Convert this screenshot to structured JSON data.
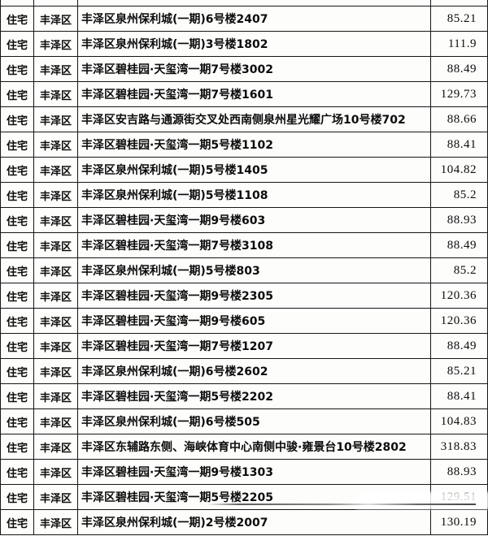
{
  "table": {
    "column_semantics": [
      "property_type",
      "district",
      "address",
      "floor_area_sqm"
    ],
    "rows": [
      {
        "type": "住宅",
        "district": "丰泽区",
        "address": "丰泽区泉州保利城(一期)6号楼2407",
        "area": "85.21"
      },
      {
        "type": "住宅",
        "district": "丰泽区",
        "address": "丰泽区泉州保利城(一期)3号楼1802",
        "area": "111.9"
      },
      {
        "type": "住宅",
        "district": "丰泽区",
        "address": "丰泽区碧桂园·天玺湾一期7号楼3002",
        "area": "88.49"
      },
      {
        "type": "住宅",
        "district": "丰泽区",
        "address": "丰泽区碧桂园·天玺湾一期7号楼1601",
        "area": "129.73"
      },
      {
        "type": "住宅",
        "district": "丰泽区",
        "address": "丰泽区安吉路与通源街交叉处西南侧泉州星光耀广场10号楼702",
        "area": "88.66"
      },
      {
        "type": "住宅",
        "district": "丰泽区",
        "address": "丰泽区碧桂园·天玺湾一期5号楼1102",
        "area": "88.41"
      },
      {
        "type": "住宅",
        "district": "丰泽区",
        "address": "丰泽区泉州保利城(一期)5号楼1405",
        "area": "104.82"
      },
      {
        "type": "住宅",
        "district": "丰泽区",
        "address": "丰泽区泉州保利城(一期)5号楼1108",
        "area": "85.2"
      },
      {
        "type": "住宅",
        "district": "丰泽区",
        "address": "丰泽区碧桂园·天玺湾一期9号楼603",
        "area": "88.93"
      },
      {
        "type": "住宅",
        "district": "丰泽区",
        "address": "丰泽区碧桂园·天玺湾一期7号楼3108",
        "area": "88.49"
      },
      {
        "type": "住宅",
        "district": "丰泽区",
        "address": "丰泽区泉州保利城(一期)5号楼803",
        "area": "85.2"
      },
      {
        "type": "住宅",
        "district": "丰泽区",
        "address": "丰泽区碧桂园·天玺湾一期9号楼2305",
        "area": "120.36"
      },
      {
        "type": "住宅",
        "district": "丰泽区",
        "address": "丰泽区碧桂园·天玺湾一期9号楼605",
        "area": "120.36"
      },
      {
        "type": "住宅",
        "district": "丰泽区",
        "address": "丰泽区碧桂园·天玺湾一期7号楼1207",
        "area": "88.49"
      },
      {
        "type": "住宅",
        "district": "丰泽区",
        "address": "丰泽区泉州保利城(一期)6号楼2602",
        "area": "85.21"
      },
      {
        "type": "住宅",
        "district": "丰泽区",
        "address": "丰泽区碧桂园·天玺湾一期5号楼2202",
        "area": "88.41"
      },
      {
        "type": "住宅",
        "district": "丰泽区",
        "address": "丰泽区泉州保利城(一期)6号楼505",
        "area": "104.83"
      },
      {
        "type": "住宅",
        "district": "丰泽区",
        "address": "丰泽区东辅路东侧、海峡体育中心南侧中骏·雍景台10号楼2802",
        "area": "318.83"
      },
      {
        "type": "住宅",
        "district": "丰泽区",
        "address": "丰泽区碧桂园·天玺湾一期9号楼1303",
        "area": "88.93"
      },
      {
        "type": "住宅",
        "district": "丰泽区",
        "address": "丰泽区碧桂园·天玺湾一期5号楼2205",
        "area": "129.51"
      },
      {
        "type": "住宅",
        "district": "丰泽区",
        "address": "丰泽区泉州保利城(一期)2号楼2007",
        "area": "130.19"
      }
    ]
  },
  "colors": {
    "background": "#fdfdfc",
    "border": "#161616",
    "text": "#0c0c0c"
  },
  "artifacts": {
    "smudged_row_index": 19,
    "description_visible": "129"
  }
}
